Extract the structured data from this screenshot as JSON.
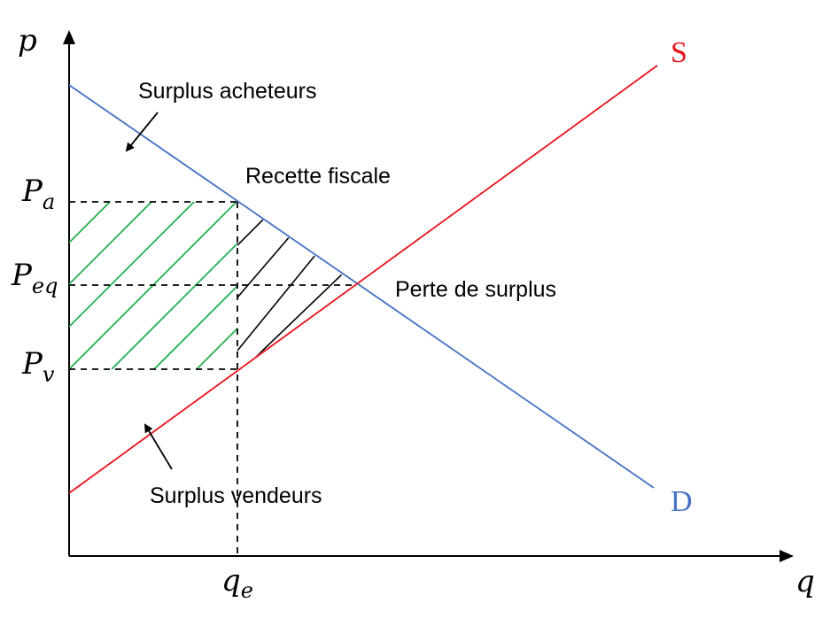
{
  "axes": {
    "y_label": "p",
    "x_label": "q"
  },
  "price_labels": {
    "pa": {
      "main": "P",
      "sub": "a"
    },
    "peq": {
      "main": "P",
      "sub": "eq"
    },
    "pv": {
      "main": "P",
      "sub": "v"
    }
  },
  "quantity_label": {
    "main": "q",
    "sub": "e"
  },
  "curves": {
    "supply": {
      "label": "S",
      "color": "#e8141c"
    },
    "demand": {
      "label": "D",
      "color": "#4472c4"
    }
  },
  "annotations": {
    "buyer_surplus": "Surplus acheteurs",
    "tax_revenue": {
      "text": "Recette fiscale",
      "color": "#22b04f"
    },
    "deadweight_loss": "Perte de surplus",
    "seller_surplus": "Surplus vendeurs"
  },
  "colors": {
    "axis": "#000000",
    "tax_hatch": "#22b04f",
    "loss_hatch": "#000000"
  }
}
